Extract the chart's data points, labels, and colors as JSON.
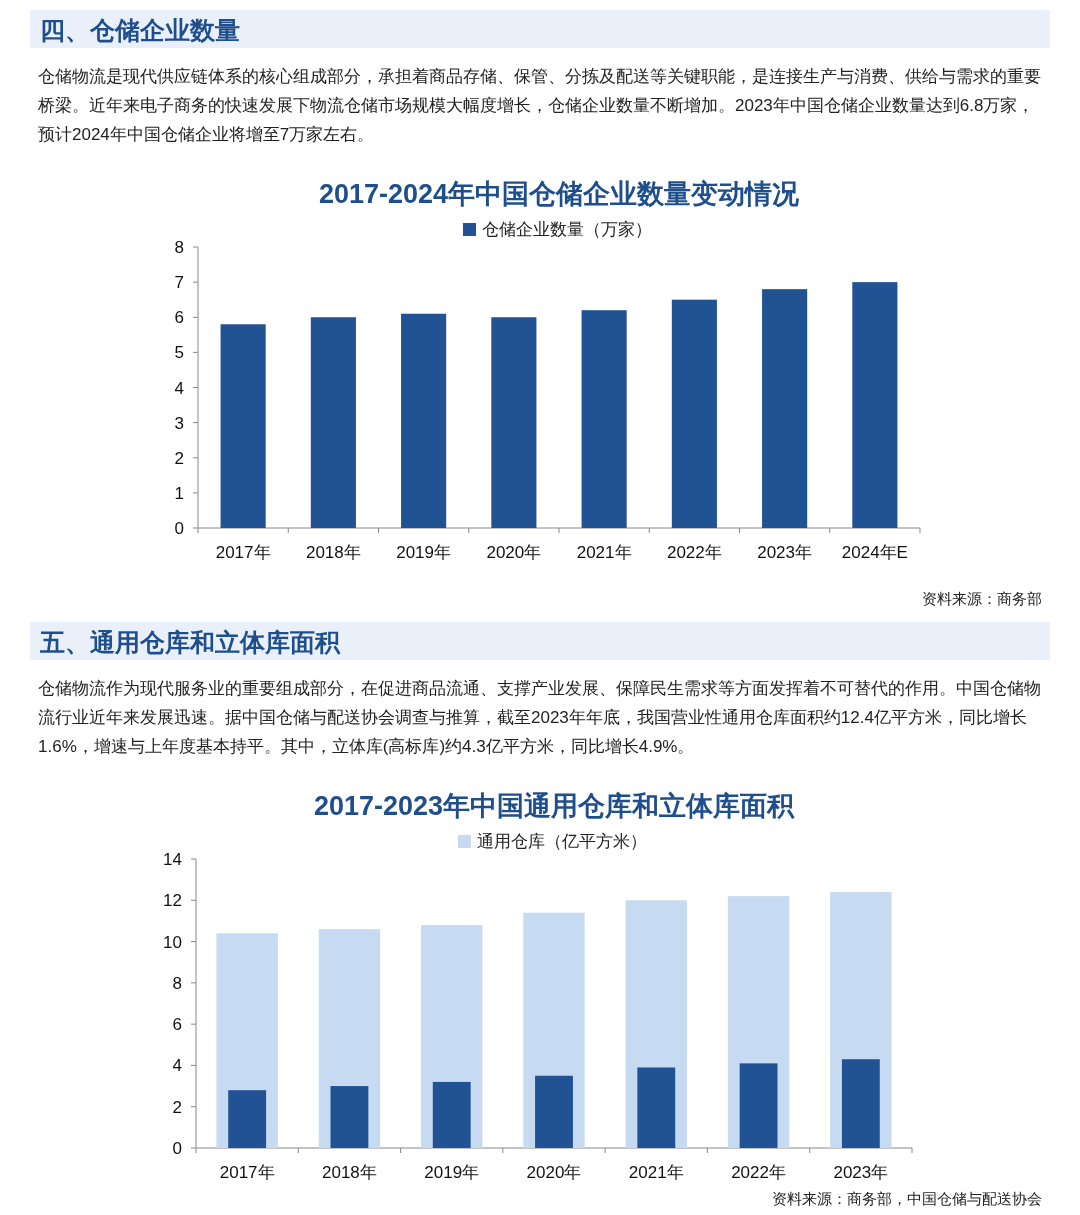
{
  "chart_data": [
    {
      "type": "bar",
      "title": "2017-2024年中国仓储企业数量变动情况",
      "categories": [
        "2017年",
        "2018年",
        "2019年",
        "2020年",
        "2021年",
        "2022年",
        "2023年",
        "2024年E"
      ],
      "series": [
        {
          "name": "仓储企业数量（万家）",
          "color": "#215294",
          "values": [
            5.8,
            6.0,
            6.1,
            6.0,
            6.2,
            6.5,
            6.8,
            7.0
          ]
        }
      ],
      "ylim": [
        0,
        8
      ],
      "yticks": [
        0,
        1,
        2,
        3,
        4,
        5,
        6,
        7,
        8
      ],
      "legend": "top",
      "annotations": [
        "四、仓储企业数量",
        "仓储物流是现代供应链体系的核心组成部分，承担着商品存储、保管、分拣及配送等关键职能，是连接生产与消费、供给与需求的重要桥梁。近年来电子商务的快速发展下物流仓储市场规模大幅度增长，仓储企业数量不断增加。2023年中国仓储企业数量达到6.8万家，预计2024年中国仓储企业将增至7万家左右。",
        "资料来源：商务部"
      ]
    },
    {
      "type": "bar",
      "title": "2017-2023年中国通用仓库和立体库面积",
      "categories": [
        "2017年",
        "2018年",
        "2019年",
        "2020年",
        "2021年",
        "2022年",
        "2023年"
      ],
      "series": [
        {
          "name": "通用仓库（亿平方米）",
          "color": "#c6daf1",
          "values": [
            10.4,
            10.6,
            10.8,
            11.4,
            12.0,
            12.2,
            12.4
          ]
        },
        {
          "color": "#215294",
          "values": [
            2.8,
            3.0,
            3.2,
            3.5,
            3.9,
            4.1,
            4.3
          ]
        }
      ],
      "ylim": [
        0,
        14
      ],
      "yticks": [
        0,
        2,
        4,
        6,
        8,
        10,
        12,
        14
      ],
      "legend": "top",
      "annotations": [
        "五、通用仓库和立体库面积",
        "仓储物流作为现代服务业的重要组成部分，在促进商品流通、支撑产业发展、保障民生需求等方面发挥着不可替代的作用。中国仓储物流行业近年来发展迅速。据中国仓储与配送协会调查与推算，截至2023年年底，我国营业性通用仓库面积约12.4亿平方米，同比增长1.6%，增速与上年度基本持平。其中，立体库(高标库)约4.3亿平方米，同比增长4.9%。",
        "资料来源：商务部，中国仓储与配送协会"
      ]
    }
  ]
}
